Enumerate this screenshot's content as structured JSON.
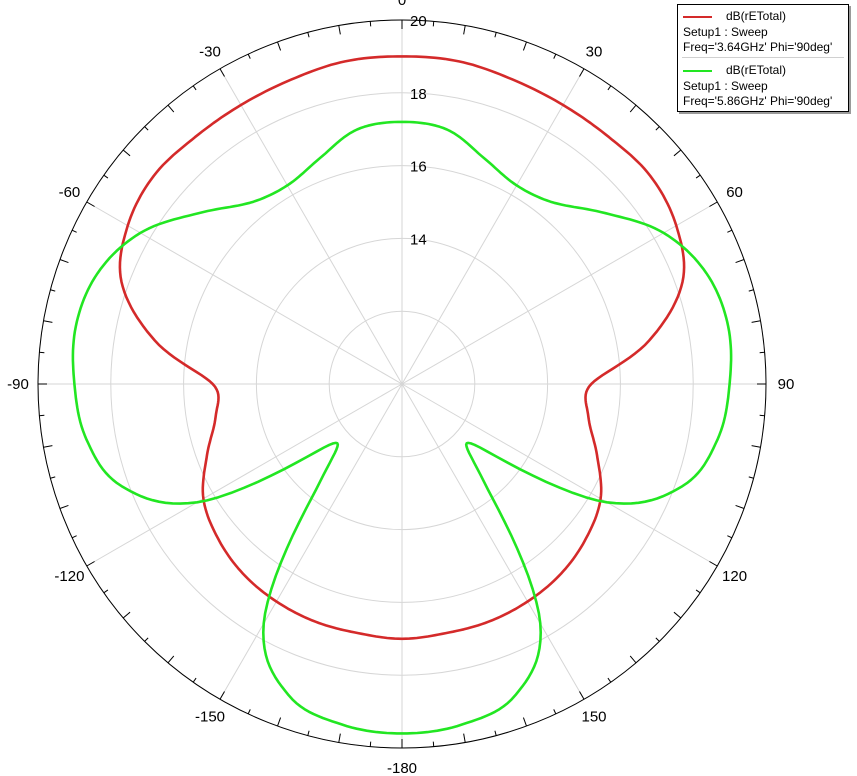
{
  "chart_data": {
    "type": "polar",
    "radial_range": [
      10,
      22
    ],
    "radial_ticks": [
      {
        "value": 14,
        "label": "14"
      },
      {
        "value": 16,
        "label": "16"
      },
      {
        "value": 18,
        "label": "18"
      },
      {
        "value": 20,
        "label": "20"
      }
    ],
    "angle_spokes": [
      0,
      30,
      60,
      90,
      120,
      150,
      180,
      -150,
      -120,
      -90,
      -60,
      -30
    ],
    "angle_labels": [
      {
        "angle": 0,
        "label": "0"
      },
      {
        "angle": 30,
        "label": "30"
      },
      {
        "angle": 60,
        "label": "60"
      },
      {
        "angle": 90,
        "label": "90"
      },
      {
        "angle": 120,
        "label": "120"
      },
      {
        "angle": 150,
        "label": "150"
      },
      {
        "angle": 180,
        "label": "-180"
      },
      {
        "angle": -150,
        "label": "-150"
      },
      {
        "angle": -120,
        "label": "-120"
      },
      {
        "angle": -90,
        "label": "-90"
      },
      {
        "angle": -60,
        "label": "-60"
      },
      {
        "angle": -30,
        "label": "-30"
      }
    ],
    "grid": true,
    "legend_position": "top-right",
    "series": [
      {
        "name": "dB(rETotal)",
        "setup": "Setup1 : Sweep",
        "params": "Freq='3.64GHz' Phi='90deg'",
        "color": "#d42a2a",
        "theta": [
          0,
          10,
          20,
          30,
          40,
          50,
          60,
          70,
          80,
          90,
          100,
          110,
          120,
          130,
          140,
          150,
          160,
          170,
          180,
          -170,
          -160,
          -150,
          -140,
          -130,
          -120,
          -110,
          -100,
          -90,
          -80,
          -70,
          -60,
          -50,
          -40,
          -30,
          -20,
          -10
        ],
        "r": [
          19.0,
          19.0,
          18.9,
          18.85,
          18.85,
          18.9,
          18.7,
          18.2,
          16.9,
          15.2,
          15.2,
          15.7,
          16.3,
          16.6,
          16.8,
          16.9,
          16.95,
          16.95,
          17.0,
          16.95,
          16.95,
          16.9,
          16.8,
          16.6,
          16.3,
          15.7,
          15.2,
          15.2,
          16.9,
          18.2,
          18.7,
          18.9,
          18.85,
          18.85,
          18.9,
          19.0
        ]
      },
      {
        "name": "dB(rETotal)",
        "setup": "Setup1 : Sweep",
        "params": "Freq='5.86GHz' Phi='90deg'",
        "color": "#22e622",
        "theta": [
          0,
          10,
          20,
          30,
          40,
          50,
          60,
          70,
          80,
          90,
          100,
          110,
          120,
          130,
          140,
          150,
          160,
          170,
          180,
          -170,
          -160,
          -150,
          -140,
          -130,
          -120,
          -110,
          -100,
          -90,
          -80,
          -70,
          -60,
          -50,
          -40,
          -30,
          -20,
          -10
        ],
        "r": [
          17.2,
          17.1,
          16.6,
          16.3,
          16.5,
          17.3,
          18.3,
          18.9,
          19.1,
          19.0,
          18.8,
          18.2,
          16.5,
          12.6,
          13.5,
          17.6,
          19.1,
          19.5,
          19.6,
          19.5,
          19.1,
          17.6,
          13.5,
          12.6,
          16.5,
          18.2,
          18.8,
          19.0,
          19.1,
          18.9,
          18.3,
          17.3,
          16.5,
          16.3,
          16.6,
          17.1
        ]
      }
    ]
  }
}
